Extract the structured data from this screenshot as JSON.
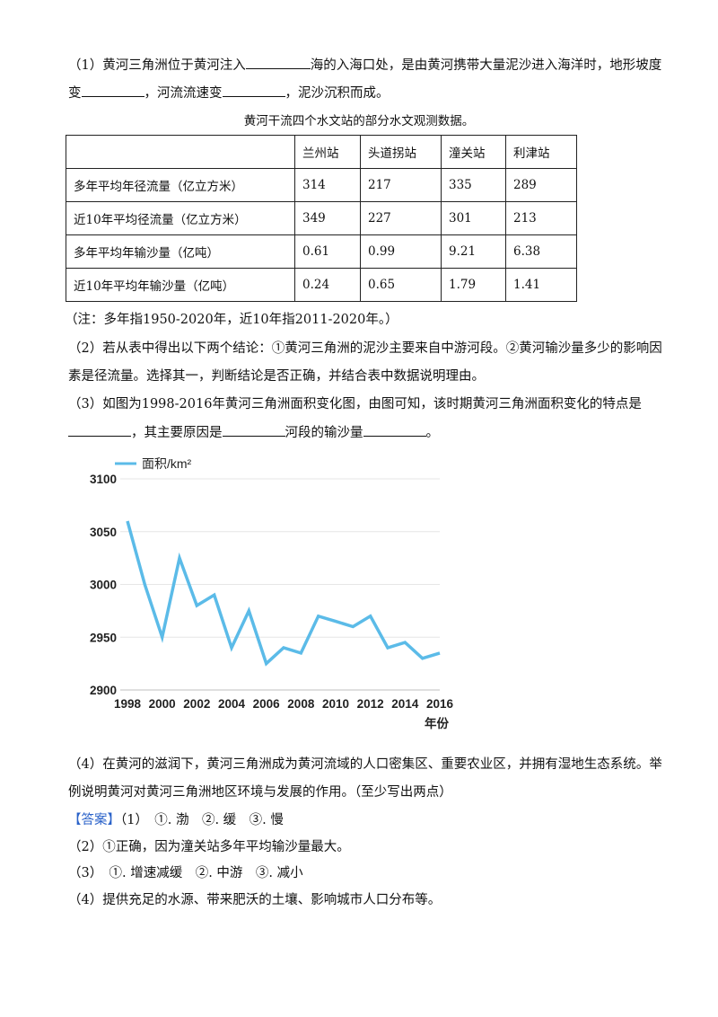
{
  "q1": {
    "line1_a": "（1）黄河三角洲位于黄河注入",
    "line1_b": "海的入海口处，是由黄河携带大量泥沙进入海洋时，地形坡度",
    "line2_a": "变",
    "line2_b": "，河流流速变",
    "line2_c": "，泥沙沉积而成。"
  },
  "table": {
    "caption": "黄河干流四个水文站的部分水文观测数据。",
    "header": [
      "",
      "兰州站",
      "头道拐站",
      "潼关站",
      "利津站"
    ],
    "rows": [
      [
        "多年平均年径流量（亿立方米）",
        "314",
        "217",
        "335",
        "289"
      ],
      [
        "近10年平均径流量（亿立方米）",
        "349",
        "227",
        "301",
        "213"
      ],
      [
        "多年平均年输沙量（亿吨）",
        "0.61",
        "0.99",
        "9.21",
        "6.38"
      ],
      [
        "近10年平均年输沙量（亿吨）",
        "0.24",
        "0.65",
        "1.79",
        "1.41"
      ]
    ],
    "note": "（注：多年指1950-2020年，近10年指2011-2020年。）"
  },
  "q2": {
    "line1": "（2）若从表中得出以下两个结论：①黄河三角洲的泥沙主要来自中游河段。②黄河输沙量多少的影响因",
    "line2": "素是径流量。选择其一，判断结论是否正确，并结合表中数据说明理由。"
  },
  "q3": {
    "line1": "（3）如图为1998-2016年黄河三角洲面积变化图，由图可知，该时期黄河三角洲面积变化的特点是",
    "line2_a": "，其主要原因是",
    "line2_b": "河段的输沙量",
    "line2_c": "。"
  },
  "chart_data": {
    "type": "line",
    "legend": "面积/km²",
    "xlabel": "年份",
    "ylabel": "",
    "ylim": [
      2900,
      3100
    ],
    "yticks": [
      "2900",
      "2950",
      "3000",
      "3050",
      "3100"
    ],
    "xticks": [
      "1998",
      "2000",
      "2002",
      "2004",
      "2006",
      "2008",
      "2010",
      "2012",
      "2014",
      "2016"
    ],
    "x": [
      1998,
      1999,
      2000,
      2001,
      2002,
      2003,
      2004,
      2005,
      2006,
      2007,
      2008,
      2009,
      2010,
      2011,
      2012,
      2013,
      2014,
      2015,
      2016
    ],
    "series": [
      {
        "name": "面积/km²",
        "color": "#5bbbe8",
        "values": [
          3060,
          3000,
          2950,
          3025,
          2980,
          2990,
          2940,
          2975,
          2925,
          2940,
          2935,
          2970,
          2965,
          2960,
          2970,
          2940,
          2945,
          2930,
          2935
        ]
      }
    ]
  },
  "q4": {
    "line1": "（4）在黄河的滋润下，黄河三角洲成为黄河流域的人口密集区、重要农业区，并拥有湿地生态系统。举",
    "line2": "例说明黄河对黄河三角洲地区环境与发展的作用。（至少写出两点）"
  },
  "answer": {
    "tag": "【答案】",
    "a1": "（1）　①. 渤　②. 缓　③. 慢",
    "a2": "（2）①正确，因为潼关站多年平均输沙量最大。",
    "a3": "（3）　①. 增速减缓　②. 中游　③. 减小",
    "a4": "（4）提供充足的水源、带来肥沃的土壤、影响城市人口分布等。"
  }
}
